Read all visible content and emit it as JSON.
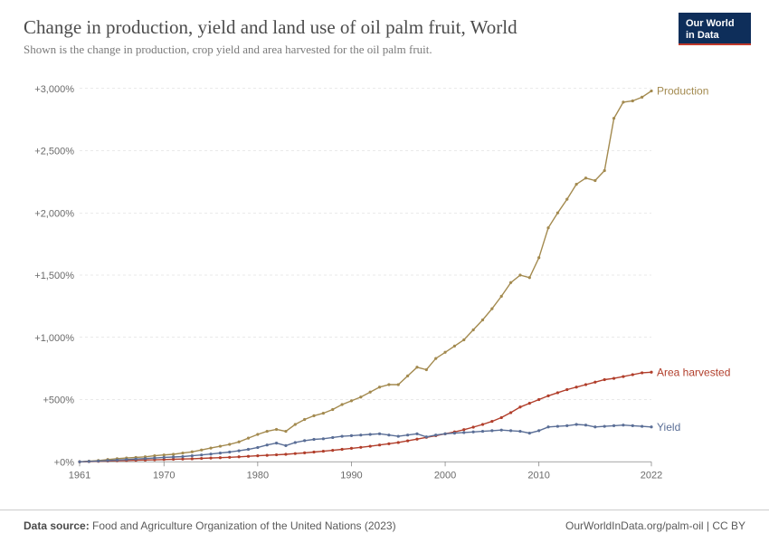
{
  "header": {
    "title": "Change in production, yield and land use of oil palm fruit, World",
    "subtitle": "Shown is the change in production, crop yield and area harvested for the oil palm fruit.",
    "logo_line1": "Our World",
    "logo_line2": "in Data"
  },
  "footer": {
    "source_label": "Data source:",
    "source_text": "Food and Agriculture Organization of the United Nations (2023)",
    "attribution": "OurWorldInData.org/palm-oil | CC BY"
  },
  "chart": {
    "type": "line",
    "x_domain": [
      1961,
      2022
    ],
    "y_domain": [
      -100,
      3100
    ],
    "x_ticks": [
      1961,
      1970,
      1980,
      1990,
      2000,
      2010,
      2022
    ],
    "y_ticks": [
      0,
      500,
      1000,
      1500,
      2000,
      2500,
      3000
    ],
    "y_tick_labels": [
      "+0%",
      "+500%",
      "+1,000%",
      "+1,500%",
      "+2,000%",
      "+2,500%",
      "+3,000%"
    ],
    "background_color": "#ffffff",
    "grid_color": "#d4d4d4",
    "axis_text_color": "#6a6a6a",
    "marker_radius": 1.6,
    "line_width": 1.4,
    "series": [
      {
        "name": "Production",
        "label": "Production",
        "color": "#a38a4f",
        "data": [
          [
            1961,
            0
          ],
          [
            1962,
            5
          ],
          [
            1963,
            10
          ],
          [
            1964,
            18
          ],
          [
            1965,
            25
          ],
          [
            1966,
            30
          ],
          [
            1967,
            35
          ],
          [
            1968,
            40
          ],
          [
            1969,
            48
          ],
          [
            1970,
            55
          ],
          [
            1971,
            60
          ],
          [
            1972,
            70
          ],
          [
            1973,
            80
          ],
          [
            1974,
            95
          ],
          [
            1975,
            110
          ],
          [
            1976,
            125
          ],
          [
            1977,
            140
          ],
          [
            1978,
            160
          ],
          [
            1979,
            190
          ],
          [
            1980,
            220
          ],
          [
            1981,
            245
          ],
          [
            1982,
            260
          ],
          [
            1983,
            245
          ],
          [
            1984,
            300
          ],
          [
            1985,
            340
          ],
          [
            1986,
            370
          ],
          [
            1987,
            390
          ],
          [
            1988,
            420
          ],
          [
            1989,
            460
          ],
          [
            1990,
            490
          ],
          [
            1991,
            520
          ],
          [
            1992,
            560
          ],
          [
            1993,
            600
          ],
          [
            1994,
            620
          ],
          [
            1995,
            620
          ],
          [
            1996,
            690
          ],
          [
            1997,
            760
          ],
          [
            1998,
            740
          ],
          [
            1999,
            830
          ],
          [
            2000,
            880
          ],
          [
            2001,
            930
          ],
          [
            2002,
            980
          ],
          [
            2003,
            1060
          ],
          [
            2004,
            1140
          ],
          [
            2005,
            1230
          ],
          [
            2006,
            1330
          ],
          [
            2007,
            1440
          ],
          [
            2008,
            1500
          ],
          [
            2009,
            1480
          ],
          [
            2010,
            1640
          ],
          [
            2011,
            1880
          ],
          [
            2012,
            2000
          ],
          [
            2013,
            2110
          ],
          [
            2014,
            2230
          ],
          [
            2015,
            2280
          ],
          [
            2016,
            2260
          ],
          [
            2017,
            2340
          ],
          [
            2018,
            2760
          ],
          [
            2019,
            2890
          ],
          [
            2020,
            2900
          ],
          [
            2021,
            2930
          ],
          [
            2022,
            2980
          ]
        ]
      },
      {
        "name": "Area harvested",
        "label": "Area harvested",
        "color": "#b13e2b",
        "data": [
          [
            1961,
            0
          ],
          [
            1962,
            2
          ],
          [
            1963,
            4
          ],
          [
            1964,
            6
          ],
          [
            1965,
            8
          ],
          [
            1966,
            10
          ],
          [
            1967,
            12
          ],
          [
            1968,
            14
          ],
          [
            1969,
            16
          ],
          [
            1970,
            18
          ],
          [
            1971,
            20
          ],
          [
            1972,
            22
          ],
          [
            1973,
            24
          ],
          [
            1974,
            27
          ],
          [
            1975,
            30
          ],
          [
            1976,
            33
          ],
          [
            1977,
            36
          ],
          [
            1978,
            40
          ],
          [
            1979,
            44
          ],
          [
            1980,
            48
          ],
          [
            1981,
            52
          ],
          [
            1982,
            56
          ],
          [
            1983,
            60
          ],
          [
            1984,
            66
          ],
          [
            1985,
            72
          ],
          [
            1986,
            78
          ],
          [
            1987,
            85
          ],
          [
            1988,
            92
          ],
          [
            1989,
            100
          ],
          [
            1990,
            108
          ],
          [
            1991,
            116
          ],
          [
            1992,
            125
          ],
          [
            1993,
            135
          ],
          [
            1994,
            145
          ],
          [
            1995,
            155
          ],
          [
            1996,
            168
          ],
          [
            1997,
            182
          ],
          [
            1998,
            196
          ],
          [
            1999,
            210
          ],
          [
            2000,
            225
          ],
          [
            2001,
            240
          ],
          [
            2002,
            258
          ],
          [
            2003,
            278
          ],
          [
            2004,
            300
          ],
          [
            2005,
            325
          ],
          [
            2006,
            355
          ],
          [
            2007,
            395
          ],
          [
            2008,
            440
          ],
          [
            2009,
            470
          ],
          [
            2010,
            500
          ],
          [
            2011,
            530
          ],
          [
            2012,
            555
          ],
          [
            2013,
            580
          ],
          [
            2014,
            600
          ],
          [
            2015,
            620
          ],
          [
            2016,
            640
          ],
          [
            2017,
            660
          ],
          [
            2018,
            670
          ],
          [
            2019,
            685
          ],
          [
            2020,
            700
          ],
          [
            2021,
            715
          ],
          [
            2022,
            720
          ]
        ]
      },
      {
        "name": "Yield",
        "label": "Yield",
        "color": "#5a6e96",
        "data": [
          [
            1961,
            0
          ],
          [
            1962,
            3
          ],
          [
            1963,
            6
          ],
          [
            1964,
            10
          ],
          [
            1965,
            14
          ],
          [
            1966,
            18
          ],
          [
            1967,
            22
          ],
          [
            1968,
            26
          ],
          [
            1969,
            30
          ],
          [
            1970,
            35
          ],
          [
            1971,
            38
          ],
          [
            1972,
            42
          ],
          [
            1973,
            48
          ],
          [
            1974,
            55
          ],
          [
            1975,
            62
          ],
          [
            1976,
            70
          ],
          [
            1977,
            78
          ],
          [
            1978,
            88
          ],
          [
            1979,
            100
          ],
          [
            1980,
            115
          ],
          [
            1981,
            135
          ],
          [
            1982,
            150
          ],
          [
            1983,
            130
          ],
          [
            1984,
            155
          ],
          [
            1985,
            170
          ],
          [
            1986,
            180
          ],
          [
            1987,
            185
          ],
          [
            1988,
            195
          ],
          [
            1989,
            205
          ],
          [
            1990,
            210
          ],
          [
            1991,
            215
          ],
          [
            1992,
            220
          ],
          [
            1993,
            225
          ],
          [
            1994,
            215
          ],
          [
            1995,
            205
          ],
          [
            1996,
            215
          ],
          [
            1997,
            225
          ],
          [
            1998,
            200
          ],
          [
            1999,
            215
          ],
          [
            2000,
            225
          ],
          [
            2001,
            230
          ],
          [
            2002,
            235
          ],
          [
            2003,
            240
          ],
          [
            2004,
            245
          ],
          [
            2005,
            250
          ],
          [
            2006,
            255
          ],
          [
            2007,
            250
          ],
          [
            2008,
            245
          ],
          [
            2009,
            230
          ],
          [
            2010,
            250
          ],
          [
            2011,
            280
          ],
          [
            2012,
            285
          ],
          [
            2013,
            290
          ],
          [
            2014,
            300
          ],
          [
            2015,
            295
          ],
          [
            2016,
            280
          ],
          [
            2017,
            285
          ],
          [
            2018,
            290
          ],
          [
            2019,
            295
          ],
          [
            2020,
            290
          ],
          [
            2021,
            285
          ],
          [
            2022,
            280
          ]
        ]
      }
    ]
  }
}
